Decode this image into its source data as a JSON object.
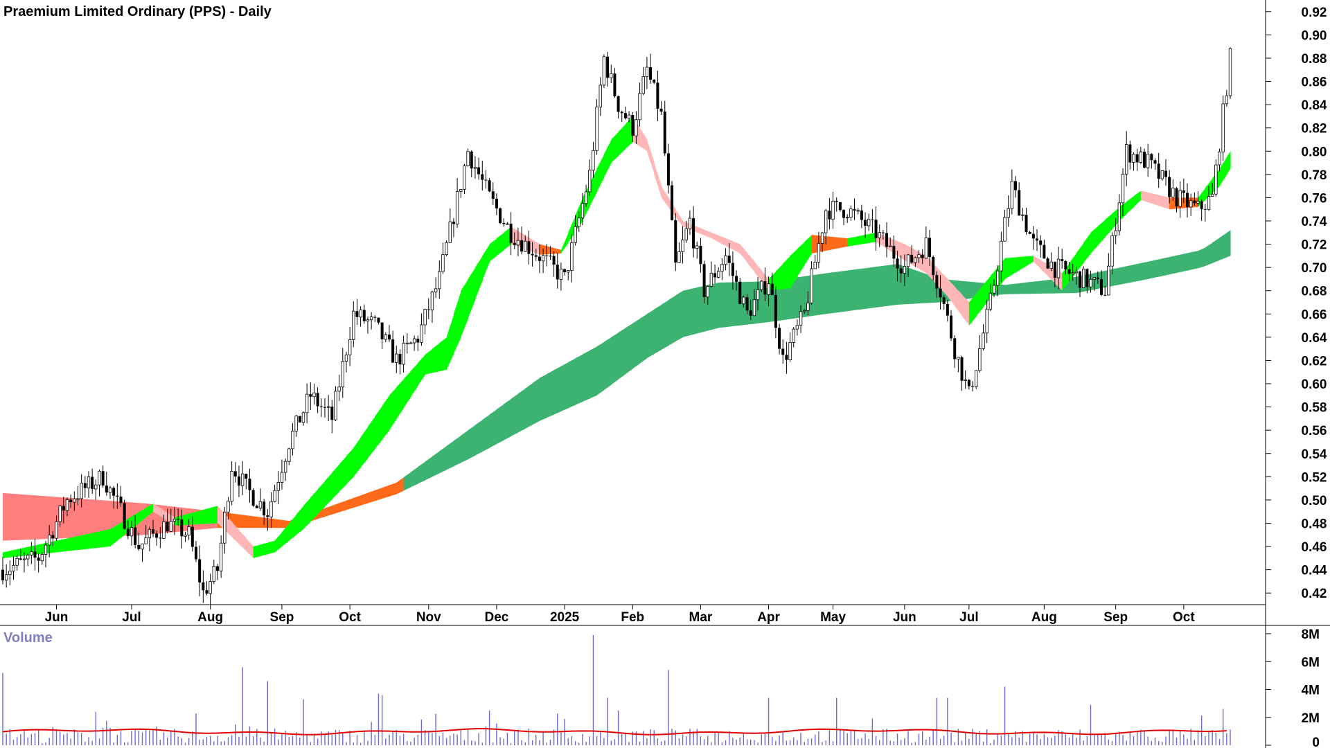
{
  "chart_data": [
    {
      "type": "candlestick",
      "title": "Praemium Limited Ordinary (PPS) - Daily",
      "interval": "Daily",
      "ylim": [
        0.41,
        0.93
      ],
      "y_ticks": [
        0.42,
        0.44,
        0.46,
        0.48,
        0.5,
        0.52,
        0.54,
        0.56,
        0.58,
        0.6,
        0.62,
        0.64,
        0.66,
        0.68,
        0.7,
        0.72,
        0.74,
        0.76,
        0.78,
        0.8,
        0.82,
        0.84,
        0.86,
        0.88,
        0.9,
        0.92
      ],
      "x_ticks": [
        "Jun",
        "Jul",
        "Aug",
        "Sep",
        "Oct",
        "Nov",
        "Dec",
        "2025",
        "Feb",
        "Mar",
        "Apr",
        "May",
        "Jun",
        "Jul",
        "Aug",
        "Sep",
        "Oct"
      ],
      "x_ticks_index": [
        15,
        36,
        58,
        78,
        97,
        119,
        138,
        157,
        176,
        195,
        214,
        232,
        252,
        270,
        291,
        311,
        330
      ],
      "bar_count": 344,
      "price_anchors": {
        "x": [
          0,
          10,
          18,
          28,
          38,
          46,
          52,
          56,
          60,
          64,
          68,
          74,
          80,
          86,
          92,
          98,
          104,
          110,
          116,
          122,
          130,
          136,
          142,
          150,
          157,
          164,
          168,
          172,
          176,
          180,
          184,
          188,
          192,
          196,
          202,
          208,
          214,
          218,
          224,
          230,
          236,
          244,
          252,
          258,
          262,
          266,
          270,
          276,
          282,
          288,
          294,
          302,
          308,
          314,
          320,
          328,
          334,
          338,
          343
        ],
        "y": [
          0.44,
          0.45,
          0.5,
          0.52,
          0.46,
          0.48,
          0.47,
          0.42,
          0.44,
          0.53,
          0.51,
          0.49,
          0.55,
          0.59,
          0.57,
          0.66,
          0.65,
          0.62,
          0.64,
          0.69,
          0.8,
          0.76,
          0.73,
          0.71,
          0.69,
          0.78,
          0.88,
          0.84,
          0.82,
          0.87,
          0.83,
          0.7,
          0.74,
          0.68,
          0.71,
          0.66,
          0.69,
          0.62,
          0.66,
          0.75,
          0.75,
          0.73,
          0.7,
          0.72,
          0.68,
          0.63,
          0.59,
          0.67,
          0.77,
          0.72,
          0.7,
          0.69,
          0.68,
          0.8,
          0.79,
          0.76,
          0.75,
          0.76,
          0.88
        ]
      },
      "short_ma_band": {
        "x": [
          0,
          30,
          42,
          48,
          60,
          70,
          76,
          84,
          98,
          108,
          118,
          124,
          128,
          136,
          142,
          150,
          156,
          162,
          170,
          176,
          180,
          184,
          190,
          198,
          206,
          214,
          220,
          226,
          236,
          244,
          252,
          258,
          264,
          270,
          280,
          288,
          296,
          304,
          312,
          318,
          326,
          334,
          340,
          343
        ],
        "upper": [
          0.455,
          0.475,
          0.497,
          0.485,
          0.495,
          0.46,
          0.465,
          0.495,
          0.545,
          0.59,
          0.625,
          0.64,
          0.68,
          0.72,
          0.735,
          0.72,
          0.715,
          0.76,
          0.81,
          0.83,
          0.81,
          0.77,
          0.74,
          0.73,
          0.72,
          0.69,
          0.71,
          0.728,
          0.725,
          0.73,
          0.72,
          0.71,
          0.69,
          0.67,
          0.708,
          0.71,
          0.695,
          0.73,
          0.752,
          0.766,
          0.76,
          0.76,
          0.785,
          0.8
        ],
        "lower": [
          0.45,
          0.46,
          0.49,
          0.478,
          0.48,
          0.45,
          0.455,
          0.475,
          0.52,
          0.56,
          0.608,
          0.612,
          0.64,
          0.705,
          0.72,
          0.711,
          0.712,
          0.74,
          0.79,
          0.808,
          0.8,
          0.76,
          0.735,
          0.725,
          0.712,
          0.68,
          0.682,
          0.712,
          0.718,
          0.722,
          0.706,
          0.695,
          0.675,
          0.65,
          0.69,
          0.705,
          0.68,
          0.712,
          0.74,
          0.758,
          0.75,
          0.752,
          0.77,
          0.785
        ]
      },
      "long_ma_band": {
        "x": [
          0,
          40,
          60,
          80,
          110,
          130,
          150,
          166,
          180,
          190,
          200,
          214,
          230,
          250,
          262,
          280,
          300,
          320,
          335,
          343
        ],
        "upper": [
          0.506,
          0.497,
          0.49,
          0.482,
          0.515,
          0.56,
          0.605,
          0.632,
          0.66,
          0.68,
          0.687,
          0.688,
          0.695,
          0.703,
          0.69,
          0.685,
          0.692,
          0.705,
          0.715,
          0.732
        ],
        "lower": [
          0.465,
          0.47,
          0.476,
          0.476,
          0.505,
          0.535,
          0.568,
          0.59,
          0.622,
          0.64,
          0.648,
          0.653,
          0.66,
          0.668,
          0.67,
          0.677,
          0.678,
          0.69,
          0.7,
          0.71
        ]
      },
      "band_colors": {
        "short_up": "#00ff00",
        "short_down": "#ff6a1a",
        "short_falling": "#ffb6b6",
        "long_up": "#3cb371",
        "long_down": "#ff7f7f",
        "long_flat": "#ff6a1a",
        "candle": "#000000"
      }
    },
    {
      "type": "bar",
      "title": "Volume",
      "ylim": [
        0,
        8000000
      ],
      "y_ticks": [
        "0",
        "2M",
        "4M",
        "6M",
        "8M"
      ],
      "volume_spikes": [
        {
          "i": 0,
          "v": 5200000
        },
        {
          "i": 26,
          "v": 2400000
        },
        {
          "i": 67,
          "v": 5600000
        },
        {
          "i": 74,
          "v": 4600000
        },
        {
          "i": 84,
          "v": 3300000
        },
        {
          "i": 105,
          "v": 3700000
        },
        {
          "i": 106,
          "v": 3600000
        },
        {
          "i": 136,
          "v": 2500000
        },
        {
          "i": 165,
          "v": 7900000
        },
        {
          "i": 169,
          "v": 3400000
        },
        {
          "i": 186,
          "v": 5400000
        },
        {
          "i": 214,
          "v": 3400000
        },
        {
          "i": 233,
          "v": 3400000
        },
        {
          "i": 261,
          "v": 3400000
        },
        {
          "i": 264,
          "v": 3400000
        },
        {
          "i": 280,
          "v": 4200000
        },
        {
          "i": 304,
          "v": 2900000
        },
        {
          "i": 341,
          "v": 2600000
        }
      ],
      "avg_volume_m": 1100000,
      "colors": {
        "bars": "#6a6acd",
        "avg_line": "#e00000"
      }
    }
  ]
}
